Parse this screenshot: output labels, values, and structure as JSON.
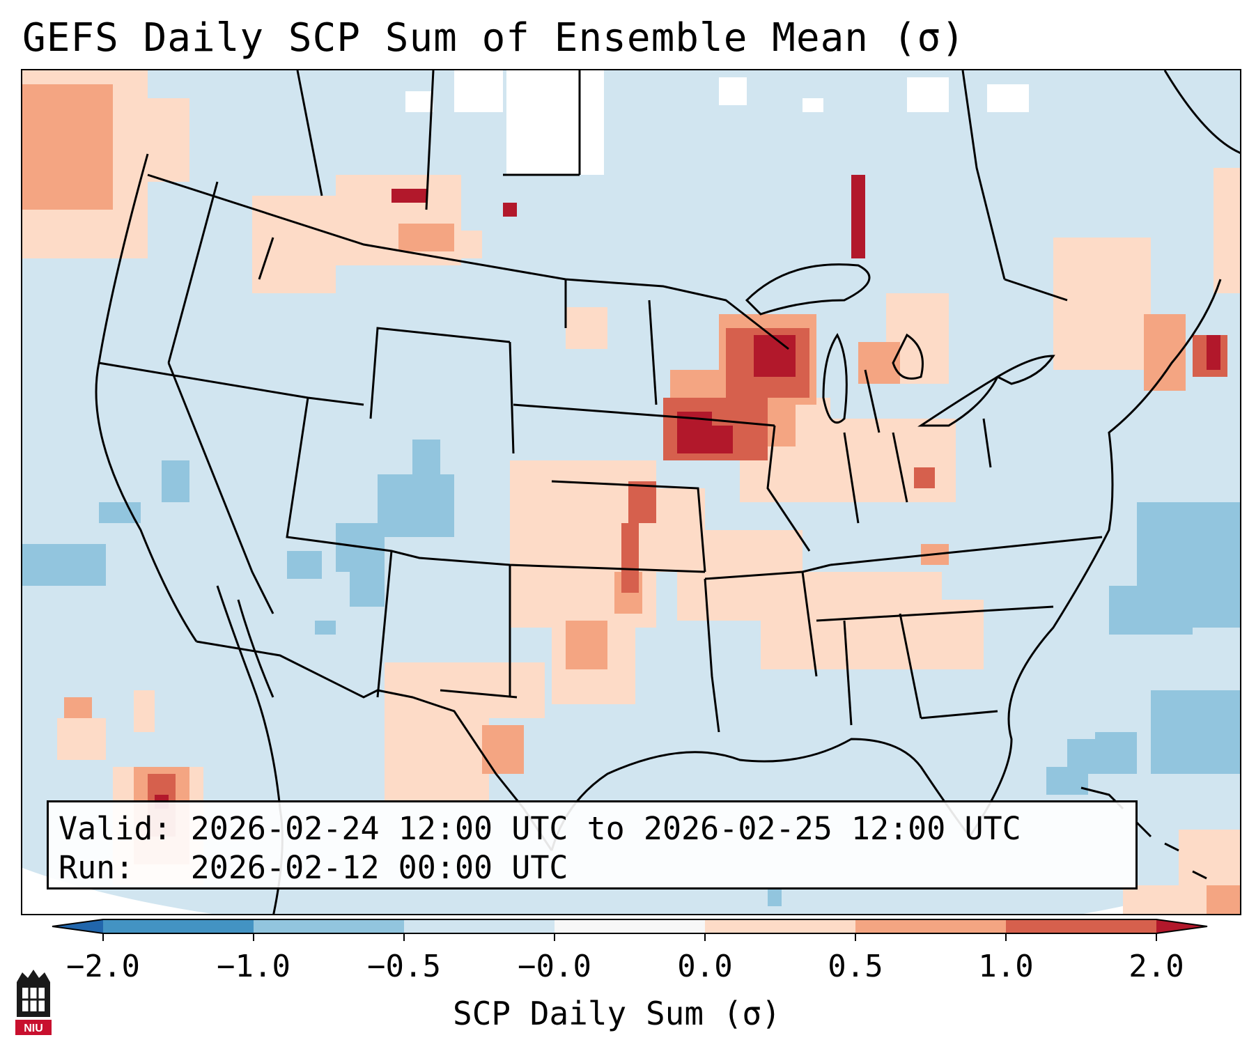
{
  "title": "GEFS Daily SCP Sum of Ensemble Mean (σ)",
  "info": {
    "valid_label": "Valid:",
    "valid_value": "2026-02-24 12:00 UTC to 2026-02-25 12:00 UTC",
    "run_label": "Run:",
    "run_value": "2026-02-12 00:00 UTC"
  },
  "colorbar": {
    "label": "SCP Daily Sum (σ)",
    "ticks": [
      "−2.0",
      "−1.0",
      "−0.5",
      "−0.0",
      "0.0",
      "0.5",
      "1.0",
      "2.0"
    ],
    "bins": [
      {
        "range": "-2.0 to -1.0",
        "color": "#4393c3"
      },
      {
        "range": "-1.0 to -0.5",
        "color": "#92c5de"
      },
      {
        "range": "-0.5 to -0.0",
        "color": "#d1e5f0"
      },
      {
        "range": "-0.0 to 0.0",
        "color": "#f7f7f7"
      },
      {
        "range": "0.0 to 0.5",
        "color": "#fddbc7"
      },
      {
        "range": "0.5 to 1.0",
        "color": "#f4a582"
      },
      {
        "range": "1.0 to 2.0",
        "color": "#d6604d"
      }
    ],
    "under_color": "#2166ac",
    "over_color": "#b2182b"
  },
  "map_colors": {
    "background": "#d1e5f0",
    "no_data": "#ffffff",
    "borders": "#000000"
  },
  "logo": {
    "text": "NIU",
    "icon": "university-tower-icon"
  }
}
